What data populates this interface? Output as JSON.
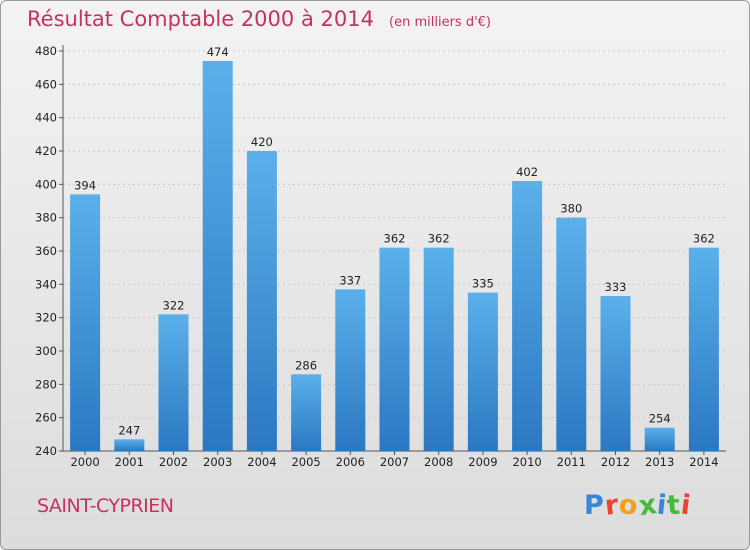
{
  "header": {
    "title": "Résultat Comptable 2000 à 2014",
    "subtitle": "(en milliers d'€)"
  },
  "footer": {
    "commune": "SAINT-CYPRIEN",
    "brand": "Proxiti"
  },
  "colors": {
    "title": "#c4335c",
    "bar_light": "#5bb0ea",
    "bar_dark": "#2a78c2",
    "grid": "#c8c8c8"
  },
  "chart_data": {
    "type": "bar",
    "title": "Résultat Comptable 2000 à 2014",
    "subtitle": "(en milliers d'€)",
    "xlabel": "",
    "ylabel": "",
    "ylim": [
      240,
      480
    ],
    "yticks": [
      240,
      260,
      280,
      300,
      320,
      340,
      360,
      380,
      400,
      420,
      440,
      460,
      480
    ],
    "grid": true,
    "categories": [
      "2000",
      "2001",
      "2002",
      "2003",
      "2004",
      "2005",
      "2006",
      "2007",
      "2008",
      "2009",
      "2010",
      "2011",
      "2012",
      "2013",
      "2014"
    ],
    "values": [
      394,
      247,
      322,
      474,
      420,
      286,
      337,
      362,
      362,
      335,
      402,
      380,
      333,
      254,
      362
    ]
  }
}
